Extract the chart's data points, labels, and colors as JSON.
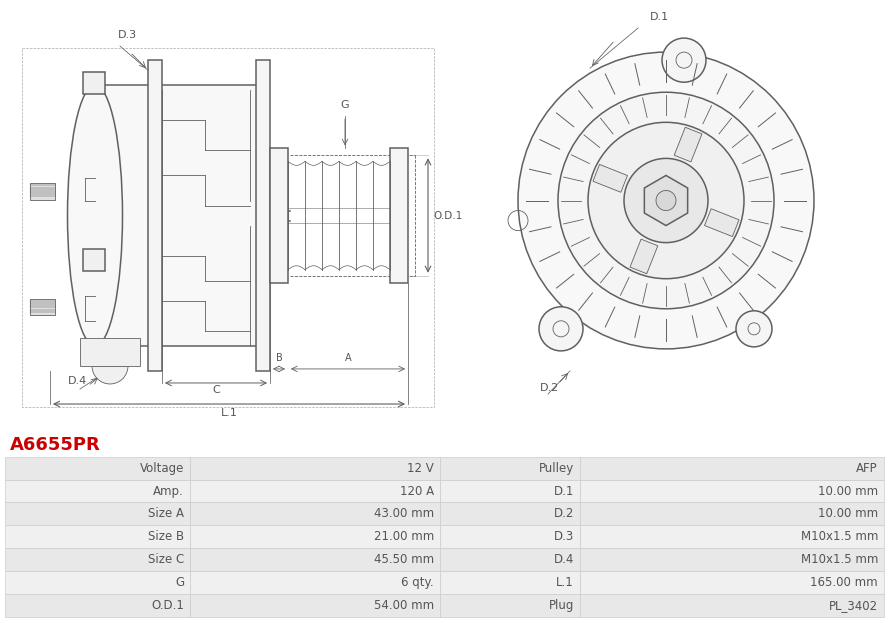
{
  "title": "A6655PR",
  "title_color": "#cc0000",
  "bg_color": "#ffffff",
  "table_rows": [
    [
      "Voltage",
      "12 V",
      "Pulley",
      "AFP"
    ],
    [
      "Amp.",
      "120 A",
      "D.1",
      "10.00 mm"
    ],
    [
      "Size A",
      "43.00 mm",
      "D.2",
      "10.00 mm"
    ],
    [
      "Size B",
      "21.00 mm",
      "D.3",
      "M10x1.5 mm"
    ],
    [
      "Size C",
      "45.50 mm",
      "D.4",
      "M10x1.5 mm"
    ],
    [
      "G",
      "6 qty.",
      "L.1",
      "165.00 mm"
    ],
    [
      "O.D.1",
      "54.00 mm",
      "Plug",
      "PL_3402"
    ]
  ],
  "row_colors": [
    "#e8e8e8",
    "#f0f0f0"
  ],
  "line_color": "#606060",
  "dim_color": "#606060",
  "text_color": "#555555",
  "lw_main": 1.1,
  "lw_thin": 0.6,
  "lw_dim": 0.55
}
